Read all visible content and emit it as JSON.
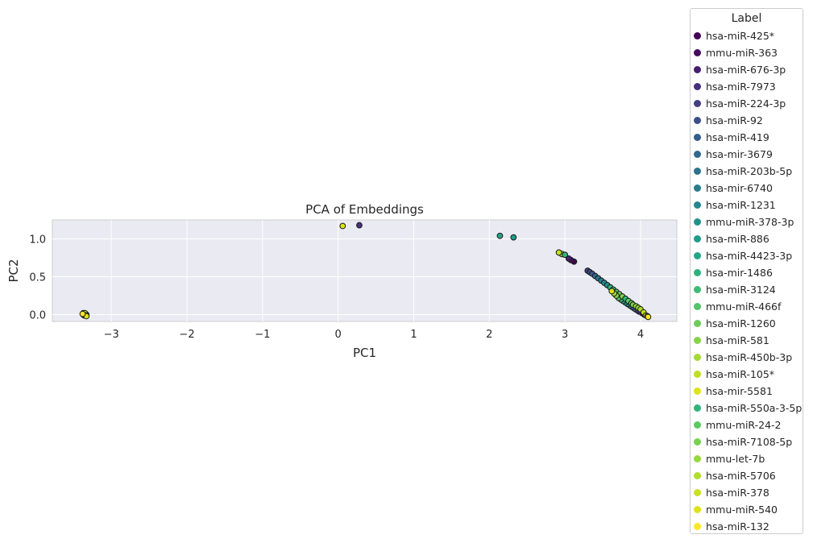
{
  "chart_data": {
    "type": "scatter",
    "title": "PCA of Embeddings",
    "xlabel": "PC1",
    "ylabel": "PC2",
    "xlim": [
      -3.78,
      4.48
    ],
    "ylim": [
      -0.09,
      1.25
    ],
    "xticks": [
      -3,
      -2,
      -1,
      0,
      1,
      2,
      3,
      4
    ],
    "xtick_labels": [
      "−3",
      "−2",
      "−1",
      "0",
      "1",
      "2",
      "3",
      "4"
    ],
    "yticks": [
      0.0,
      0.5,
      1.0
    ],
    "ytick_labels": [
      "0.0",
      "0.5",
      "1.0"
    ],
    "grid": true,
    "legend_title": "Label",
    "legend_position": "outside-right",
    "series": [
      {
        "name": "hsa-miR-425*",
        "color": "#440154",
        "points": [
          [
            3.12,
            0.7
          ],
          [
            4.05,
            0.0
          ]
        ]
      },
      {
        "name": "mmu-miR-363",
        "color": "#450b5e",
        "points": [
          [
            3.08,
            0.72
          ],
          [
            4.02,
            0.02
          ]
        ]
      },
      {
        "name": "hsa-miR-676-3p",
        "color": "#471f6e",
        "points": [
          [
            3.05,
            0.74
          ],
          [
            -3.36,
            0.01
          ]
        ]
      },
      {
        "name": "hsa-miR-7973",
        "color": "#46307e",
        "points": [
          [
            0.28,
            1.18
          ],
          [
            3.98,
            0.04
          ]
        ]
      },
      {
        "name": "hsa-miR-224-3p",
        "color": "#423f85",
        "points": [
          [
            3.3,
            0.58
          ],
          [
            3.95,
            0.06
          ]
        ]
      },
      {
        "name": "hsa-miR-92",
        "color": "#3d4e8a",
        "points": [
          [
            3.33,
            0.56
          ],
          [
            -3.35,
            0.0
          ]
        ]
      },
      {
        "name": "hsa-miR-419",
        "color": "#375b8d",
        "points": [
          [
            3.36,
            0.54
          ],
          [
            3.92,
            0.08
          ]
        ]
      },
      {
        "name": "hsa-mir-3679",
        "color": "#31688e",
        "points": [
          [
            3.4,
            0.51
          ],
          [
            3.89,
            0.1
          ]
        ]
      },
      {
        "name": "hsa-miR-203b-5p",
        "color": "#2c738e",
        "points": [
          [
            3.44,
            0.48
          ],
          [
            -3.37,
            0.02
          ]
        ]
      },
      {
        "name": "hsa-mir-6740",
        "color": "#287d8e",
        "points": [
          [
            3.48,
            0.45
          ],
          [
            3.86,
            0.12
          ]
        ]
      },
      {
        "name": "hsa-miR-1231",
        "color": "#24878e",
        "points": [
          [
            3.52,
            0.42
          ],
          [
            3.83,
            0.14
          ]
        ]
      },
      {
        "name": "mmu-miR-378-3p",
        "color": "#20928c",
        "points": [
          [
            3.56,
            0.39
          ],
          [
            -3.34,
            0.01
          ]
        ]
      },
      {
        "name": "hsa-miR-886",
        "color": "#1e9c89",
        "points": [
          [
            2.32,
            1.02
          ],
          [
            3.8,
            0.16
          ]
        ]
      },
      {
        "name": "hsa-miR-4423-3p",
        "color": "#22a785",
        "points": [
          [
            2.14,
            1.04
          ],
          [
            3.77,
            0.18
          ]
        ]
      },
      {
        "name": "hsa-mir-1486",
        "color": "#2db27d",
        "points": [
          [
            3.6,
            0.36
          ],
          [
            -3.33,
            0.0
          ]
        ]
      },
      {
        "name": "hsa-miR-3124",
        "color": "#3dbc74",
        "points": [
          [
            3.64,
            0.33
          ],
          [
            3.74,
            0.2
          ]
        ]
      },
      {
        "name": "mmu-miR-466f",
        "color": "#52c569",
        "points": [
          [
            3.68,
            0.3
          ],
          [
            3.71,
            0.22
          ]
        ]
      },
      {
        "name": "hsa-miR-1260",
        "color": "#6ccd5a",
        "points": [
          [
            3.72,
            0.27
          ],
          [
            -3.36,
            -0.01
          ]
        ]
      },
      {
        "name": "hsa-miR-581",
        "color": "#86d549",
        "points": [
          [
            3.76,
            0.24
          ],
          [
            3.68,
            0.25
          ]
        ]
      },
      {
        "name": "hsa-miR-450b-3p",
        "color": "#a2da37",
        "points": [
          [
            2.96,
            0.8
          ],
          [
            3.65,
            0.28
          ]
        ]
      },
      {
        "name": "hsa-miR-105*",
        "color": "#bfdf25",
        "points": [
          [
            2.92,
            0.82
          ],
          [
            -3.35,
            0.02
          ]
        ]
      },
      {
        "name": "hsa-mir-5581",
        "color": "#dde318",
        "points": [
          [
            0.06,
            1.17
          ],
          [
            3.62,
            0.31
          ]
        ]
      },
      {
        "name": "hsa-miR-550a-3-5p",
        "color": "#31b57b",
        "points": [
          [
            3.0,
            0.79
          ],
          [
            3.8,
            0.21
          ]
        ]
      },
      {
        "name": "mmu-miR-24-2",
        "color": "#5ec962",
        "points": [
          [
            3.84,
            0.18
          ],
          [
            -3.34,
            -0.01
          ]
        ]
      },
      {
        "name": "hsa-miR-7108-5p",
        "color": "#7ad151",
        "points": [
          [
            3.88,
            0.15
          ],
          [
            3.9,
            0.13
          ]
        ]
      },
      {
        "name": "mmu-let-7b",
        "color": "#95d840",
        "points": [
          [
            3.94,
            0.11
          ],
          [
            3.97,
            0.09
          ]
        ]
      },
      {
        "name": "hsa-miR-5706",
        "color": "#b0dd2f",
        "points": [
          [
            4.0,
            0.07
          ],
          [
            -3.37,
            0.0
          ]
        ]
      },
      {
        "name": "hsa-miR-378",
        "color": "#cae11f",
        "points": [
          [
            4.04,
            0.03
          ],
          [
            4.07,
            -0.01
          ]
        ]
      },
      {
        "name": "mmu-miR-540",
        "color": "#e0e31a",
        "points": [
          [
            4.09,
            -0.02
          ],
          [
            -3.33,
            -0.02
          ]
        ]
      },
      {
        "name": "hsa-miR-132",
        "color": "#fde725",
        "points": [
          [
            4.1,
            -0.03
          ],
          [
            -3.38,
            0.01
          ]
        ]
      }
    ]
  }
}
